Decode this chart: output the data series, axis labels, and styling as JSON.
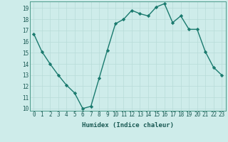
{
  "x": [
    0,
    1,
    2,
    3,
    4,
    5,
    6,
    7,
    8,
    9,
    10,
    11,
    12,
    13,
    14,
    15,
    16,
    17,
    18,
    19,
    20,
    21,
    22,
    23
  ],
  "y": [
    16.7,
    15.1,
    14.0,
    13.0,
    12.1,
    11.4,
    10.0,
    10.2,
    12.7,
    15.2,
    17.6,
    18.0,
    18.8,
    18.5,
    18.3,
    19.1,
    19.4,
    17.7,
    18.3,
    17.1,
    17.1,
    15.1,
    13.7,
    13.0
  ],
  "line_color": "#1a7a6e",
  "marker": "D",
  "markersize": 2.2,
  "bg_color": "#ceecea",
  "grid_color": "#b8dbd8",
  "xlabel": "Humidex (Indice chaleur)",
  "ylim": [
    9.8,
    19.6
  ],
  "yticks": [
    10,
    11,
    12,
    13,
    14,
    15,
    16,
    17,
    18,
    19
  ],
  "xlim": [
    -0.5,
    23.5
  ],
  "xticks": [
    0,
    1,
    2,
    3,
    4,
    5,
    6,
    7,
    8,
    9,
    10,
    11,
    12,
    13,
    14,
    15,
    16,
    17,
    18,
    19,
    20,
    21,
    22,
    23
  ],
  "label_fontsize": 6.5,
  "tick_fontsize": 5.5,
  "linewidth": 1.0
}
